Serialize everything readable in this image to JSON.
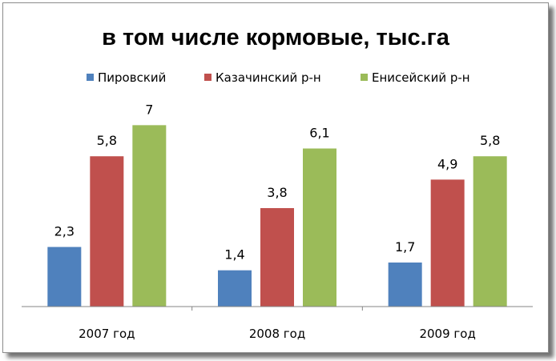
{
  "chart_data": {
    "type": "bar",
    "title": "в том числе  кормовые, тыс.га",
    "categories": [
      "2007 год",
      "2008 год",
      "2009 год"
    ],
    "series": [
      {
        "name": "Пировский",
        "values": [
          2.3,
          1.4,
          1.7
        ],
        "labels": [
          "2,3",
          "1,4",
          "1,7"
        ],
        "color": "#4f81bd"
      },
      {
        "name": "Казачинский р-н",
        "values": [
          5.8,
          3.8,
          4.9
        ],
        "labels": [
          "5,8",
          "3,8",
          "4,9"
        ],
        "color": "#c0504d"
      },
      {
        "name": "Енисейский р-н",
        "values": [
          7,
          6.1,
          5.8
        ],
        "labels": [
          "7",
          "6,1",
          "5,8"
        ],
        "color": "#9bbb59"
      }
    ],
    "xlabel": "",
    "ylabel": "",
    "ylim": [
      0,
      8
    ],
    "grid": false,
    "legend_position": "top"
  }
}
